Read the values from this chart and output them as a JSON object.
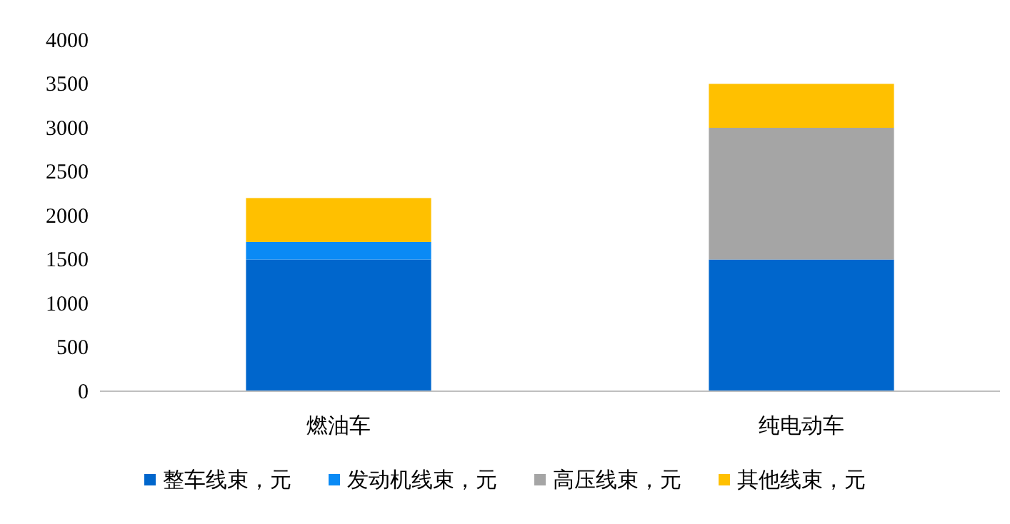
{
  "chart_data": {
    "type": "bar",
    "stacked": true,
    "categories": [
      "燃油车",
      "纯电动车"
    ],
    "series": [
      {
        "name": "整车线束，元",
        "color": "#0066cc",
        "values": [
          1500,
          1500
        ]
      },
      {
        "name": "发动机线束，元",
        "color": "#0a8af5",
        "values": [
          200,
          0
        ]
      },
      {
        "name": "高压线束，元",
        "color": "#a5a5a5",
        "values": [
          0,
          1500
        ]
      },
      {
        "name": "其他线束，元",
        "color": "#ffc000",
        "values": [
          500,
          500
        ]
      }
    ],
    "ylim": [
      0,
      4000
    ],
    "yticks": [
      0,
      500,
      1000,
      1500,
      2000,
      2500,
      3000,
      3500,
      4000
    ],
    "grid": false,
    "legend": "bottom"
  }
}
